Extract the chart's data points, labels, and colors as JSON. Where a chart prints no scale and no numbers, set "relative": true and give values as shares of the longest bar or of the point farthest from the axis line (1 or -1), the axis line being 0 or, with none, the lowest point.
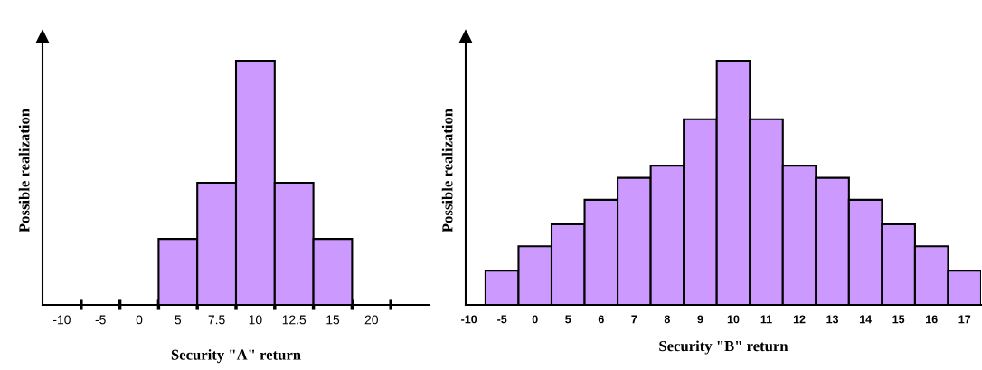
{
  "chart_data": [
    {
      "type": "bar",
      "relative": true,
      "tick_labels": "x",
      "color": "#cc99ff",
      "xlabel": "Security \"A\" return",
      "ylabel": "Possible realization",
      "categories": [
        "-10",
        "-5",
        "0",
        "5",
        "7.5",
        "10",
        "12.5",
        "15",
        "20"
      ],
      "values": [
        0,
        0,
        0,
        0.27,
        0.5,
        1,
        0.5,
        0.27,
        0
      ]
    },
    {
      "type": "bar",
      "relative": true,
      "tick_labels": "x",
      "color": "#cc99ff",
      "xlabel": "Security \"B\" return",
      "ylabel": "Possible realization",
      "categories": [
        "-10",
        "-5",
        "0",
        "5",
        "6",
        "7",
        "8",
        "9",
        "10",
        "11",
        "12",
        "13",
        "14",
        "15",
        "16",
        "17"
      ],
      "values": [
        0,
        0.14,
        0.24,
        0.33,
        0.43,
        0.52,
        0.57,
        0.76,
        1,
        0.76,
        0.57,
        0.52,
        0.43,
        0.33,
        0.24,
        0.14
      ]
    }
  ]
}
